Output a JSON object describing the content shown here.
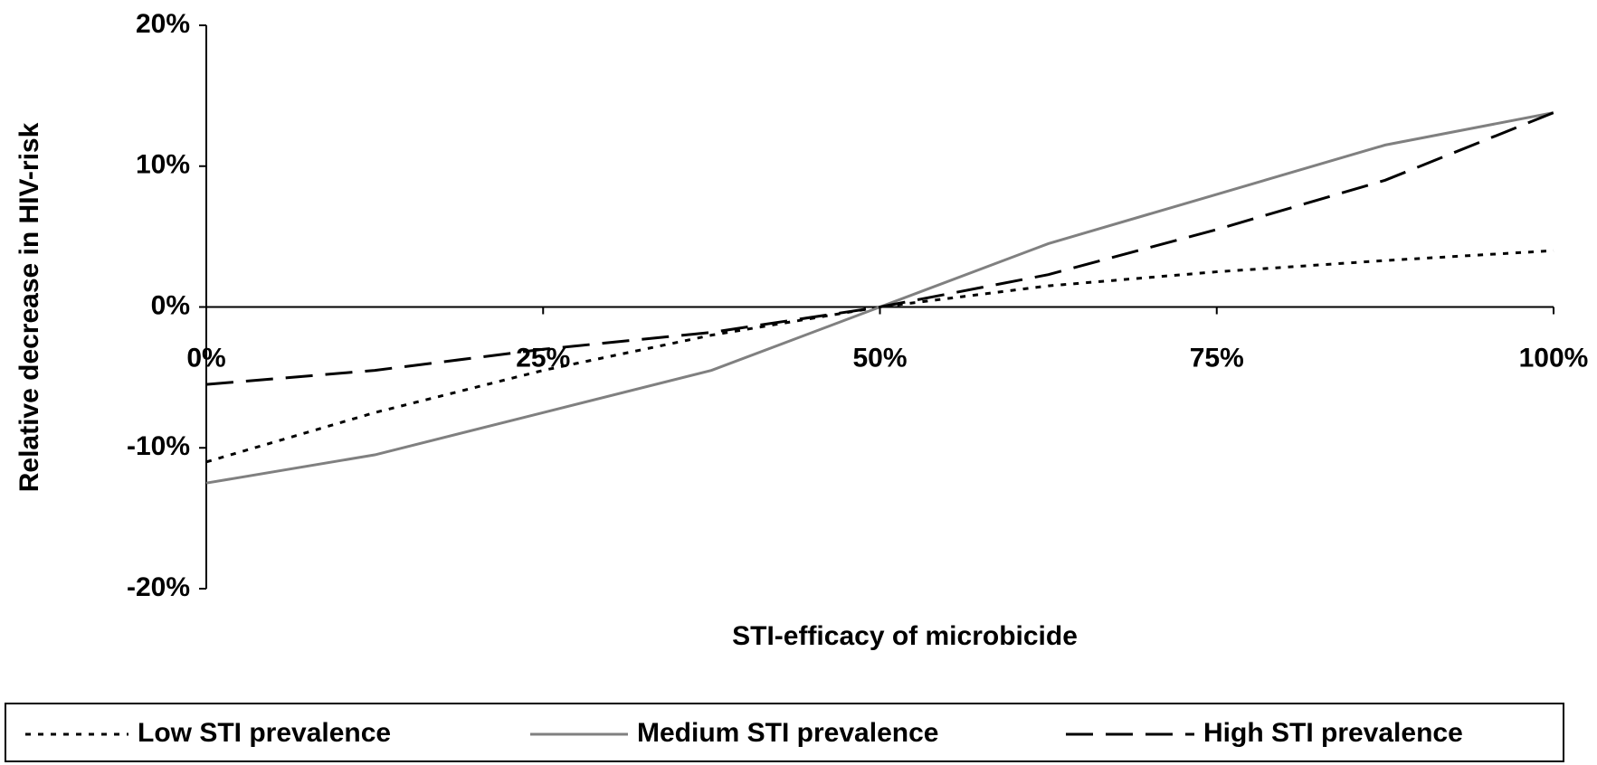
{
  "chart_data": {
    "type": "line",
    "x_label": "STI-efficacy of microbicide",
    "y_label": "Relative decrease in HIV-risk",
    "x": [
      0,
      12.5,
      25,
      37.5,
      50,
      62.5,
      75,
      87.5,
      100
    ],
    "series": [
      {
        "name": "Low STI prevalence",
        "color": "#000000",
        "dash": "dotted",
        "values": [
          -11,
          -7.5,
          -4.5,
          -2,
          0,
          1.5,
          2.5,
          3.3,
          4
        ]
      },
      {
        "name": "Medium STI prevalence",
        "color": "#808080",
        "dash": "solid",
        "values": [
          -12.5,
          -10.5,
          -7.5,
          -4.5,
          0,
          4.5,
          8,
          11.5,
          13.8
        ]
      },
      {
        "name": "High STI prevalence",
        "color": "#000000",
        "dash": "dashed",
        "values": [
          -5.5,
          -4.5,
          -3,
          -1.8,
          0,
          2.3,
          5.5,
          9,
          13.8
        ]
      }
    ],
    "xlim": [
      0,
      100
    ],
    "xticks": [
      {
        "value": 0,
        "label": "0%"
      },
      {
        "value": 25,
        "label": "25%"
      },
      {
        "value": 50,
        "label": "50%"
      },
      {
        "value": 75,
        "label": "75%"
      },
      {
        "value": 100,
        "label": "100%"
      }
    ],
    "ylim": [
      -20,
      20
    ],
    "yticks": [
      {
        "value": -20,
        "label": "-20%"
      },
      {
        "value": -10,
        "label": "-10%"
      },
      {
        "value": 0,
        "label": "0%"
      },
      {
        "value": 10,
        "label": "10%"
      },
      {
        "value": 20,
        "label": "20%"
      }
    ],
    "grid": false,
    "legend": "bottom"
  }
}
